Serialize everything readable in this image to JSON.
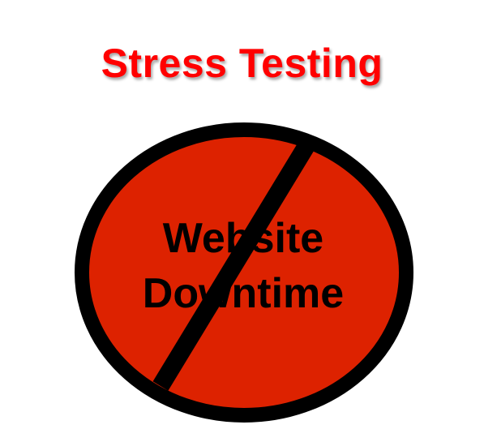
{
  "title": "Stress Testing",
  "sign": {
    "icon": "no-sign-icon",
    "line1": "Website",
    "line2": "Downtime",
    "fill_color": "#dd2200",
    "ring_color": "#000000"
  },
  "colors": {
    "title": "#ff0000",
    "background": "#ffffff"
  }
}
